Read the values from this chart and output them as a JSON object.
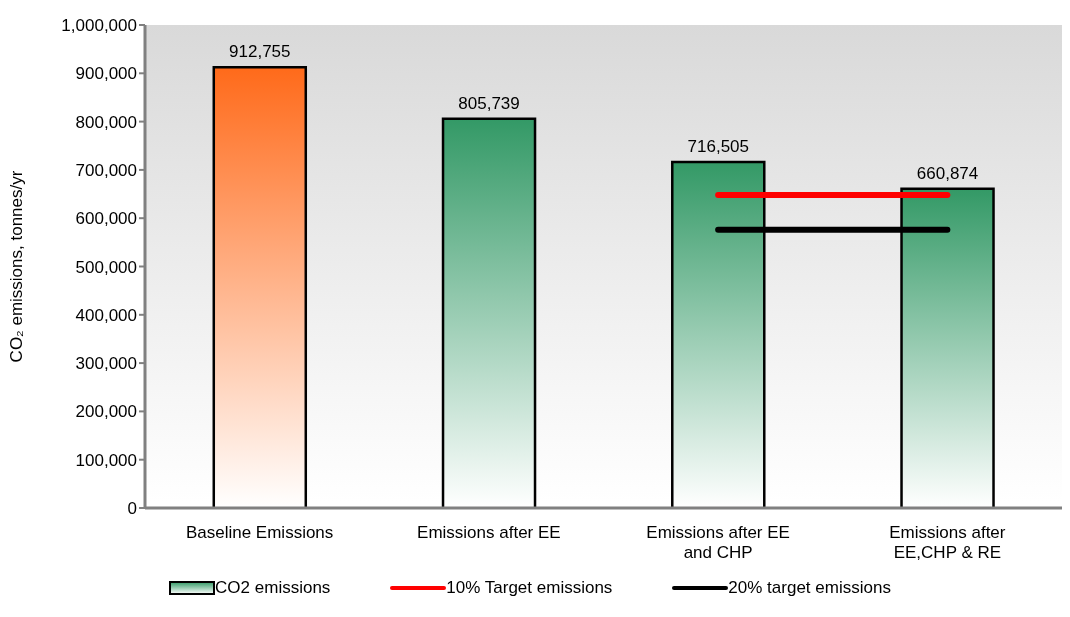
{
  "chart_data": {
    "type": "bar",
    "ylabel": "CO₂ emissions, tonnes/yr",
    "categories": [
      "Baseline Emissions",
      "Emissions after EE",
      "Emissions after EE and CHP",
      "Emissions after EE,CHP & RE"
    ],
    "series": [
      {
        "name": "CO2 emissions",
        "color": "#339966",
        "colors": [
          "#ff6a1a",
          "#339966",
          "#339966",
          "#339966"
        ],
        "values": [
          912755,
          805739,
          716505,
          660874
        ],
        "value_labels": [
          "912,755",
          "805,739",
          "716,505",
          "660,874"
        ]
      },
      {
        "name": "10% Target emissions",
        "type": "line",
        "color": "#ff0000",
        "values": [
          null,
          null,
          648000,
          648000
        ]
      },
      {
        "name": "20% target emissions",
        "type": "line",
        "color": "#000000",
        "values": [
          null,
          null,
          576000,
          576000
        ]
      }
    ],
    "ylim": [
      0,
      1000000
    ],
    "yticks": [
      {
        "value": 0,
        "label": "0"
      },
      {
        "value": 100000,
        "label": "100,000"
      },
      {
        "value": 200000,
        "label": "200,000"
      },
      {
        "value": 300000,
        "label": "300,000"
      },
      {
        "value": 400000,
        "label": "400,000"
      },
      {
        "value": 500000,
        "label": "500,000"
      },
      {
        "value": 600000,
        "label": "600,000"
      },
      {
        "value": 700000,
        "label": "700,000"
      },
      {
        "value": 800000,
        "label": "800,000"
      },
      {
        "value": 900000,
        "label": "900,000"
      },
      {
        "value": 1000000,
        "label": "1,000,000"
      }
    ],
    "legend": "bottom",
    "grid": false
  }
}
